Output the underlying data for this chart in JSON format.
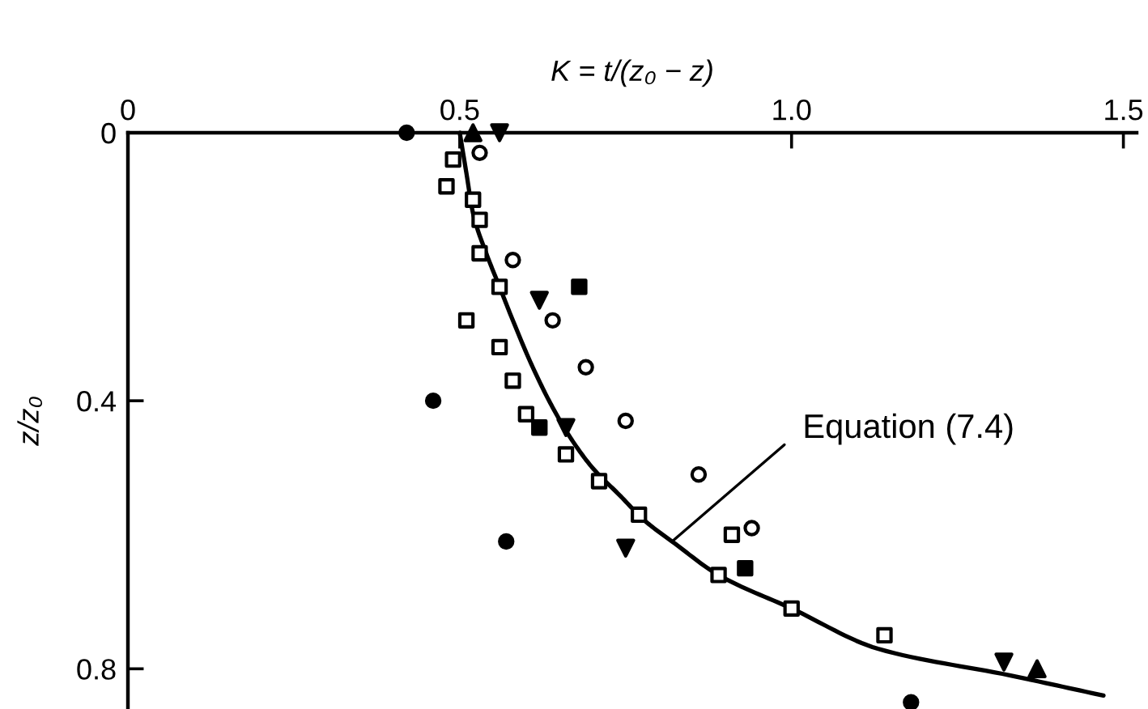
{
  "chart_data": {
    "type": "scatter",
    "xlabel": "K = t/(z₀ − z)",
    "ylabel": "z/z₀",
    "xlim": [
      0,
      1.52
    ],
    "ylim": [
      0.86,
      0
    ],
    "xticks": [
      0,
      0.5,
      {
        "value": 1,
        "label": "1.0"
      },
      1.5
    ],
    "yticks": [
      0,
      0.4,
      0.8
    ],
    "annotations": [
      {
        "text": "Equation (7.4)",
        "x": 0.82,
        "y": 0.61
      }
    ],
    "series": [
      {
        "type": "line",
        "color": "#000000",
        "x": [
          0.5,
          0.51,
          0.52,
          0.54,
          0.56,
          0.58,
          0.61,
          0.64,
          0.67,
          0.7,
          0.74,
          0.78,
          0.82,
          0.89,
          1.0,
          1.13,
          1.33,
          1.47
        ],
        "values": [
          0,
          0.06,
          0.12,
          0.18,
          0.23,
          0.28,
          0.35,
          0.41,
          0.46,
          0.5,
          0.54,
          0.58,
          0.61,
          0.66,
          0.71,
          0.77,
          0.81,
          0.84
        ]
      },
      {
        "color": "#000000",
        "marker": "square-open",
        "x": [
          0.49,
          0.48,
          0.52,
          0.53,
          0.53,
          0.56,
          0.51,
          0.56,
          0.58,
          0.6,
          0.66,
          0.71,
          0.77,
          0.91,
          0.89,
          1.0,
          1.14
        ],
        "values": [
          0.04,
          0.08,
          0.1,
          0.13,
          0.18,
          0.23,
          0.28,
          0.32,
          0.37,
          0.42,
          0.48,
          0.52,
          0.57,
          0.6,
          0.66,
          0.71,
          0.75
        ]
      },
      {
        "color": "#000000",
        "marker": "circle-open",
        "x": [
          0.53,
          0.58,
          0.64,
          0.69,
          0.75,
          0.86,
          0.94
        ],
        "values": [
          0.03,
          0.19,
          0.28,
          0.35,
          0.43,
          0.51,
          0.59
        ]
      },
      {
        "color": "#000000",
        "marker": "circle",
        "x": [
          0.42,
          0.46,
          0.57,
          1.18
        ],
        "values": [
          0,
          0.4,
          0.61,
          0.85
        ]
      },
      {
        "color": "#000000",
        "marker": "square",
        "x": [
          0.68,
          0.62,
          0.93
        ],
        "values": [
          0.23,
          0.44,
          0.65
        ]
      },
      {
        "color": "#000000",
        "marker": "triangle-down",
        "x": [
          0.56,
          0.62,
          0.66,
          0.75,
          1.32
        ],
        "values": [
          0,
          0.25,
          0.44,
          0.62,
          0.79
        ]
      },
      {
        "color": "#000000",
        "marker": "triangle",
        "x": [
          0.52,
          1.37
        ],
        "values": [
          0,
          0.8
        ]
      }
    ]
  }
}
